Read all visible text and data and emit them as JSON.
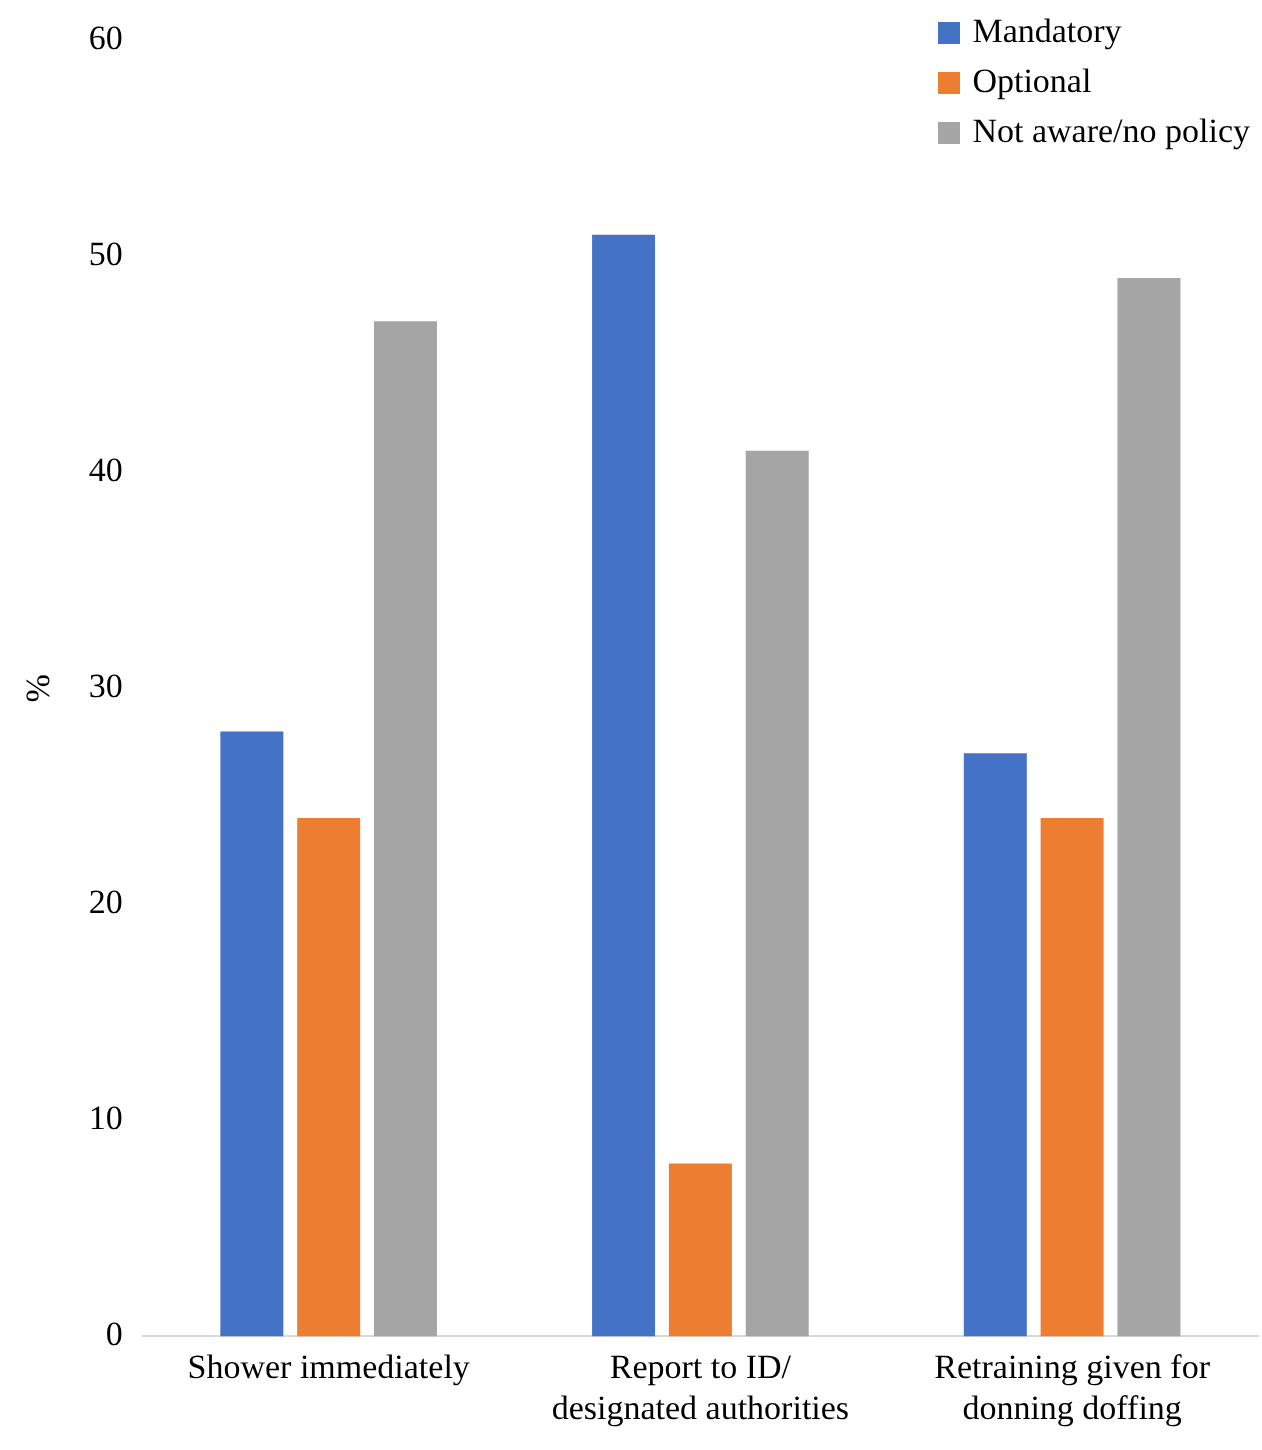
{
  "chart_data": {
    "type": "bar",
    "ylabel": "%",
    "categories": [
      "Shower immediately",
      "Report to ID/\ndesignated authorities",
      "Retraining given for\ndonning doffing"
    ],
    "series": [
      {
        "name": "Mandatory",
        "color": "#4472c4",
        "values": [
          28,
          51,
          27
        ]
      },
      {
        "name": "Optional",
        "color": "#ed7d31",
        "values": [
          24,
          8,
          24
        ]
      },
      {
        "name": "Not aware/no policy",
        "color": "#a5a5a5",
        "values": [
          47,
          41,
          49
        ]
      }
    ],
    "ylim": [
      0,
      60
    ],
    "yticks": [
      0,
      10,
      20,
      30,
      40,
      50,
      60
    ],
    "grid": false,
    "legend": "top right"
  }
}
